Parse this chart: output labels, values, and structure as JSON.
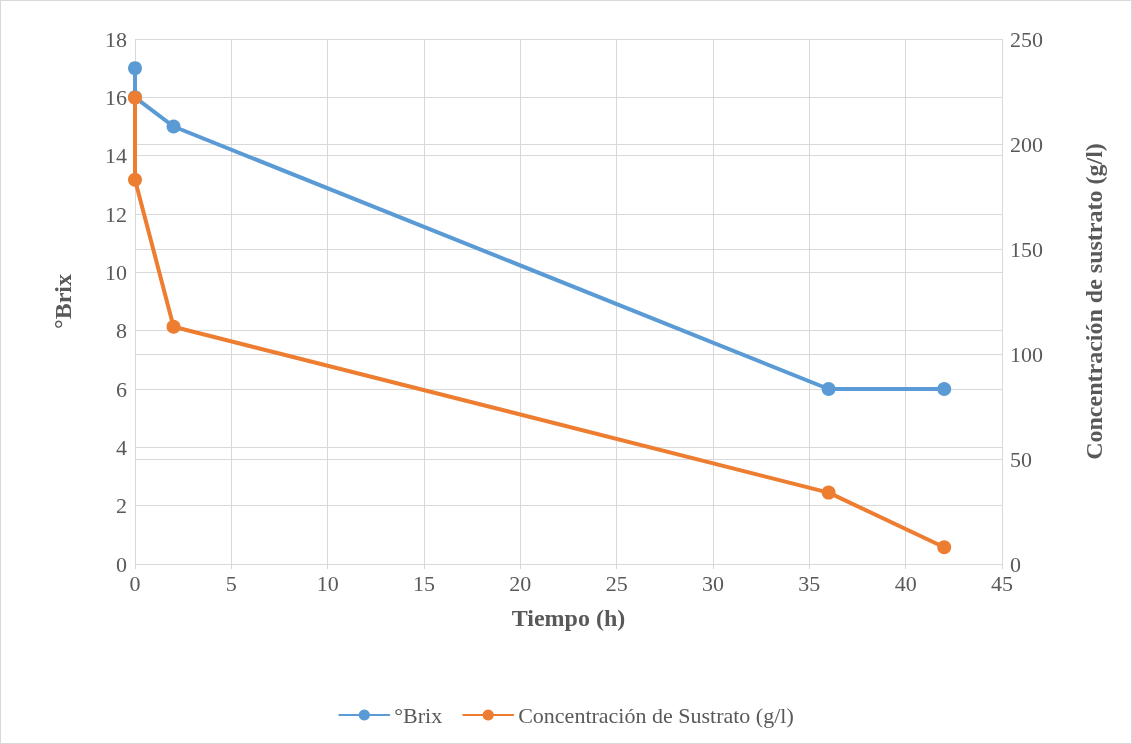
{
  "chart_data": {
    "type": "line",
    "xlabel": "Tiempo (h)",
    "ylabel": "°Brix",
    "y2label": "Concentración de sustrato (g/l)",
    "xlim": [
      0,
      45
    ],
    "xticks": [
      0,
      5,
      10,
      15,
      20,
      25,
      30,
      35,
      40,
      45
    ],
    "ylim": [
      0,
      18
    ],
    "yticks": [
      0,
      2,
      4,
      6,
      8,
      10,
      12,
      14,
      16,
      18
    ],
    "y2lim": [
      0,
      250
    ],
    "y2ticks": [
      0,
      50,
      100,
      150,
      200,
      250
    ],
    "grid": true,
    "legend": "bottom",
    "marker": "circle",
    "line_style": "solid",
    "series": [
      {
        "name": "°Brix",
        "color": "#5b9bd5",
        "x": [
          0,
          0,
          2,
          36,
          42
        ],
        "values": [
          17,
          16,
          15,
          6,
          6
        ]
      },
      {
        "name": "Concentración de Sustrato (g/l)",
        "color": "#ed7d31",
        "axis": "y2",
        "x": [
          0,
          0,
          2,
          36,
          42
        ],
        "values": [
          222,
          183,
          113,
          34,
          8
        ]
      }
    ]
  }
}
